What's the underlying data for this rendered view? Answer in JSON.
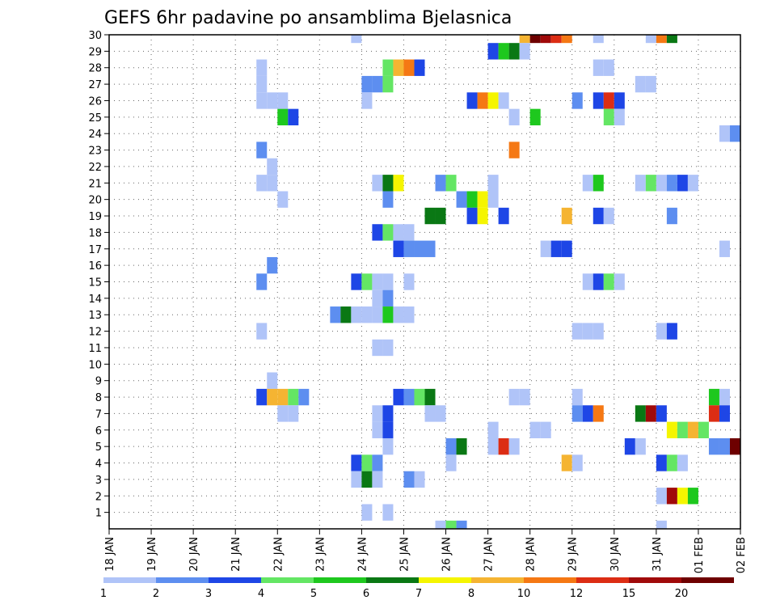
{
  "chart_data": {
    "type": "heatmap",
    "title": "GEFS 6hr padavine po ansamblima Bjelasnica",
    "x_labels": [
      "18 JAN",
      "19 JAN",
      "20 JAN",
      "21 JAN",
      "22 JAN",
      "23 JAN",
      "24 JAN",
      "25 JAN",
      "26 JAN",
      "27 JAN",
      "28 JAN",
      "29 JAN",
      "30 JAN",
      "31 JAN",
      "01 FEB",
      "02 FEB"
    ],
    "y_labels": [
      "1",
      "2",
      "3",
      "4",
      "5",
      "6",
      "7",
      "8",
      "9",
      "10",
      "11",
      "12",
      "13",
      "14",
      "15",
      "16",
      "17",
      "18",
      "19",
      "20",
      "21",
      "22",
      "23",
      "24",
      "25",
      "26",
      "27",
      "28",
      "29",
      "30"
    ],
    "xlim": [
      0,
      60
    ],
    "ylim": [
      0,
      30
    ],
    "grid": true,
    "colorbar": {
      "labels": [
        "1",
        "2",
        "3",
        "4",
        "5",
        "6",
        "7",
        "8",
        "10",
        "12",
        "15",
        "20"
      ],
      "colors": [
        "#b0c4f8",
        "#5d8ef0",
        "#1e46e6",
        "#64e664",
        "#1ec81e",
        "#0a7814",
        "#f5f500",
        "#f5b432",
        "#f57814",
        "#dc2d14",
        "#a00a0a",
        "#6e0000"
      ]
    },
    "cells": [
      [
        23.5,
        30,
        1
      ],
      [
        39.5,
        30,
        8
      ],
      [
        40.5,
        30,
        12
      ],
      [
        41.5,
        30,
        11
      ],
      [
        42.5,
        30,
        10
      ],
      [
        43.5,
        30,
        9
      ],
      [
        46.5,
        30,
        1
      ],
      [
        51.5,
        30,
        1
      ],
      [
        52.5,
        30,
        9
      ],
      [
        53.5,
        30,
        6
      ],
      [
        36.5,
        29,
        3
      ],
      [
        37.5,
        29,
        5
      ],
      [
        38.5,
        29,
        6
      ],
      [
        39.5,
        29,
        1
      ],
      [
        14.5,
        28,
        1
      ],
      [
        26.5,
        28,
        4
      ],
      [
        27.5,
        28,
        8
      ],
      [
        28.5,
        28,
        9
      ],
      [
        29.5,
        28,
        3
      ],
      [
        46.5,
        28,
        1
      ],
      [
        47.5,
        28,
        1
      ],
      [
        14.5,
        27,
        1
      ],
      [
        24.5,
        27,
        2
      ],
      [
        25.5,
        27,
        2
      ],
      [
        26.5,
        27,
        4
      ],
      [
        50.5,
        27,
        1
      ],
      [
        51.5,
        27,
        1
      ],
      [
        14.5,
        26,
        1
      ],
      [
        15.5,
        26,
        1
      ],
      [
        16.5,
        26,
        1
      ],
      [
        24.5,
        26,
        1
      ],
      [
        34.5,
        26,
        3
      ],
      [
        35.5,
        26,
        9
      ],
      [
        36.5,
        26,
        7
      ],
      [
        37.5,
        26,
        1
      ],
      [
        44.5,
        26,
        2
      ],
      [
        46.5,
        26,
        3
      ],
      [
        47.5,
        26,
        10
      ],
      [
        48.5,
        26,
        3
      ],
      [
        16.5,
        25,
        5
      ],
      [
        17.5,
        25,
        3
      ],
      [
        38.5,
        25,
        1
      ],
      [
        40.5,
        25,
        5
      ],
      [
        47.5,
        25,
        4
      ],
      [
        48.5,
        25,
        1
      ],
      [
        58.5,
        24,
        1
      ],
      [
        59.5,
        24,
        2
      ],
      [
        14.5,
        23,
        2
      ],
      [
        38.5,
        23,
        9
      ],
      [
        15.5,
        22,
        1
      ],
      [
        14.5,
        21,
        1
      ],
      [
        15.5,
        21,
        1
      ],
      [
        25.5,
        21,
        1
      ],
      [
        26.5,
        21,
        6
      ],
      [
        27.5,
        21,
        7
      ],
      [
        31.5,
        21,
        2
      ],
      [
        32.5,
        21,
        4
      ],
      [
        36.5,
        21,
        1
      ],
      [
        45.5,
        21,
        1
      ],
      [
        46.5,
        21,
        5
      ],
      [
        50.5,
        21,
        1
      ],
      [
        51.5,
        21,
        4
      ],
      [
        52.5,
        21,
        1
      ],
      [
        53.5,
        21,
        2
      ],
      [
        54.5,
        21,
        3
      ],
      [
        55.5,
        21,
        1
      ],
      [
        16.5,
        20,
        1
      ],
      [
        26.5,
        20,
        2
      ],
      [
        33.5,
        20,
        2
      ],
      [
        34.5,
        20,
        5
      ],
      [
        35.5,
        20,
        7
      ],
      [
        36.5,
        20,
        1
      ],
      [
        30.5,
        19,
        6
      ],
      [
        31.5,
        19,
        6
      ],
      [
        34.5,
        19,
        3
      ],
      [
        35.5,
        19,
        7
      ],
      [
        37.5,
        19,
        3
      ],
      [
        43.5,
        19,
        8
      ],
      [
        46.5,
        19,
        3
      ],
      [
        47.5,
        19,
        1
      ],
      [
        53.5,
        19,
        2
      ],
      [
        25.5,
        18,
        3
      ],
      [
        26.5,
        18,
        4
      ],
      [
        27.5,
        18,
        1
      ],
      [
        28.5,
        18,
        1
      ],
      [
        27.5,
        17,
        3
      ],
      [
        28.5,
        17,
        2
      ],
      [
        29.5,
        17,
        2
      ],
      [
        30.5,
        17,
        2
      ],
      [
        41.5,
        17,
        1
      ],
      [
        42.5,
        17,
        3
      ],
      [
        43.5,
        17,
        3
      ],
      [
        58.5,
        17,
        1
      ],
      [
        15.5,
        16,
        2
      ],
      [
        14.5,
        15,
        2
      ],
      [
        23.5,
        15,
        3
      ],
      [
        24.5,
        15,
        4
      ],
      [
        25.5,
        15,
        1
      ],
      [
        26.5,
        15,
        1
      ],
      [
        28.5,
        15,
        1
      ],
      [
        45.5,
        15,
        1
      ],
      [
        46.5,
        15,
        3
      ],
      [
        47.5,
        15,
        4
      ],
      [
        48.5,
        15,
        1
      ],
      [
        25.5,
        14,
        1
      ],
      [
        26.5,
        14,
        2
      ],
      [
        21.5,
        13,
        2
      ],
      [
        22.5,
        13,
        6
      ],
      [
        23.5,
        13,
        1
      ],
      [
        24.5,
        13,
        1
      ],
      [
        25.5,
        13,
        1
      ],
      [
        26.5,
        13,
        5
      ],
      [
        27.5,
        13,
        1
      ],
      [
        28.5,
        13,
        1
      ],
      [
        14.5,
        12,
        1
      ],
      [
        44.5,
        12,
        1
      ],
      [
        45.5,
        12,
        1
      ],
      [
        46.5,
        12,
        1
      ],
      [
        52.5,
        12,
        1
      ],
      [
        53.5,
        12,
        3
      ],
      [
        25.5,
        11,
        1
      ],
      [
        26.5,
        11,
        1
      ],
      [
        15.5,
        9,
        1
      ],
      [
        14.5,
        8,
        3
      ],
      [
        15.5,
        8,
        8
      ],
      [
        16.5,
        8,
        8
      ],
      [
        17.5,
        8,
        4
      ],
      [
        18.5,
        8,
        2
      ],
      [
        27.5,
        8,
        3
      ],
      [
        28.5,
        8,
        2
      ],
      [
        29.5,
        8,
        4
      ],
      [
        30.5,
        8,
        6
      ],
      [
        38.5,
        8,
        1
      ],
      [
        39.5,
        8,
        1
      ],
      [
        44.5,
        8,
        1
      ],
      [
        57.5,
        8,
        5
      ],
      [
        58.5,
        8,
        1
      ],
      [
        16.5,
        7,
        1
      ],
      [
        17.5,
        7,
        1
      ],
      [
        25.5,
        7,
        1
      ],
      [
        26.5,
        7,
        3
      ],
      [
        30.5,
        7,
        1
      ],
      [
        31.5,
        7,
        1
      ],
      [
        44.5,
        7,
        2
      ],
      [
        45.5,
        7,
        3
      ],
      [
        46.5,
        7,
        9
      ],
      [
        50.5,
        7,
        6
      ],
      [
        51.5,
        7,
        11
      ],
      [
        52.5,
        7,
        3
      ],
      [
        57.5,
        7,
        10
      ],
      [
        58.5,
        7,
        3
      ],
      [
        25.5,
        6,
        1
      ],
      [
        26.5,
        6,
        3
      ],
      [
        36.5,
        6,
        1
      ],
      [
        40.5,
        6,
        1
      ],
      [
        41.5,
        6,
        1
      ],
      [
        53.5,
        6,
        7
      ],
      [
        54.5,
        6,
        4
      ],
      [
        55.5,
        6,
        8
      ],
      [
        56.5,
        6,
        4
      ],
      [
        26.5,
        5,
        1
      ],
      [
        32.5,
        5,
        2
      ],
      [
        33.5,
        5,
        6
      ],
      [
        36.5,
        5,
        1
      ],
      [
        37.5,
        5,
        10
      ],
      [
        38.5,
        5,
        1
      ],
      [
        49.5,
        5,
        3
      ],
      [
        50.5,
        5,
        1
      ],
      [
        57.5,
        5,
        2
      ],
      [
        58.5,
        5,
        2
      ],
      [
        59.5,
        5,
        12
      ],
      [
        23.5,
        4,
        3
      ],
      [
        24.5,
        4,
        4
      ],
      [
        25.5,
        4,
        2
      ],
      [
        32.5,
        4,
        1
      ],
      [
        43.5,
        4,
        8
      ],
      [
        44.5,
        4,
        1
      ],
      [
        52.5,
        4,
        3
      ],
      [
        53.5,
        4,
        4
      ],
      [
        54.5,
        4,
        1
      ],
      [
        23.5,
        3,
        1
      ],
      [
        24.5,
        3,
        6
      ],
      [
        25.5,
        3,
        1
      ],
      [
        28.5,
        3,
        2
      ],
      [
        29.5,
        3,
        1
      ],
      [
        52.5,
        2,
        1
      ],
      [
        53.5,
        2,
        11
      ],
      [
        54.5,
        2,
        7
      ],
      [
        55.5,
        2,
        5
      ],
      [
        24.5,
        1,
        1
      ],
      [
        26.5,
        1,
        1
      ],
      [
        31.5,
        0,
        1
      ],
      [
        32.5,
        0,
        4
      ],
      [
        33.5,
        0,
        2
      ],
      [
        52.5,
        0,
        1
      ]
    ]
  }
}
